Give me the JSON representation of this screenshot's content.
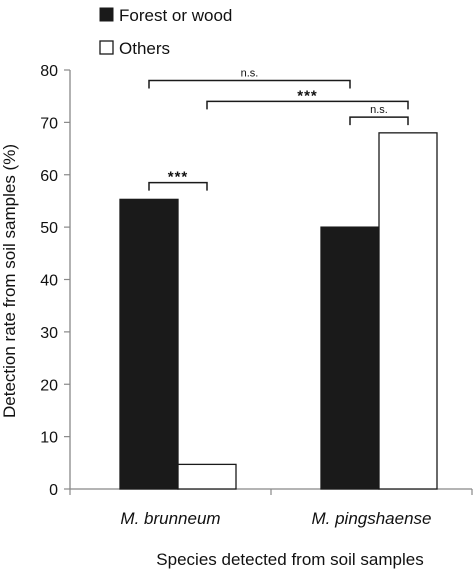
{
  "chart_data": {
    "type": "bar",
    "categories": [
      "M. brunneum",
      "M. pingshaense"
    ],
    "series": [
      {
        "name": "Forest or wood",
        "values": [
          55.3,
          50.0
        ],
        "color": "#1a1a1a"
      },
      {
        "name": "Others",
        "values": [
          4.7,
          68.0
        ],
        "color": "#ffffff"
      }
    ],
    "xlabel": "Species detected from soil samples",
    "ylabel": "Detection rate from soil samples (%)",
    "ylim": [
      0,
      80
    ],
    "yticks": [
      0,
      10,
      20,
      30,
      40,
      50,
      60,
      70,
      80
    ],
    "grid": false,
    "legend_position": "top-left",
    "annotations": [
      {
        "label": "n.s.",
        "from": {
          "category": 0,
          "series": 0
        },
        "to": {
          "category": 1,
          "series": 0
        },
        "y": 78
      },
      {
        "label": "***",
        "from": {
          "category": 0,
          "series": 1
        },
        "to": {
          "category": 1,
          "series": 1
        },
        "y": 74
      },
      {
        "label": "n.s.",
        "from": {
          "category": 1,
          "series": 0
        },
        "to": {
          "category": 1,
          "series": 1
        },
        "y": 71
      },
      {
        "label": "***",
        "from": {
          "category": 0,
          "series": 0
        },
        "to": {
          "category": 0,
          "series": 1
        },
        "y": 58.5
      }
    ]
  }
}
